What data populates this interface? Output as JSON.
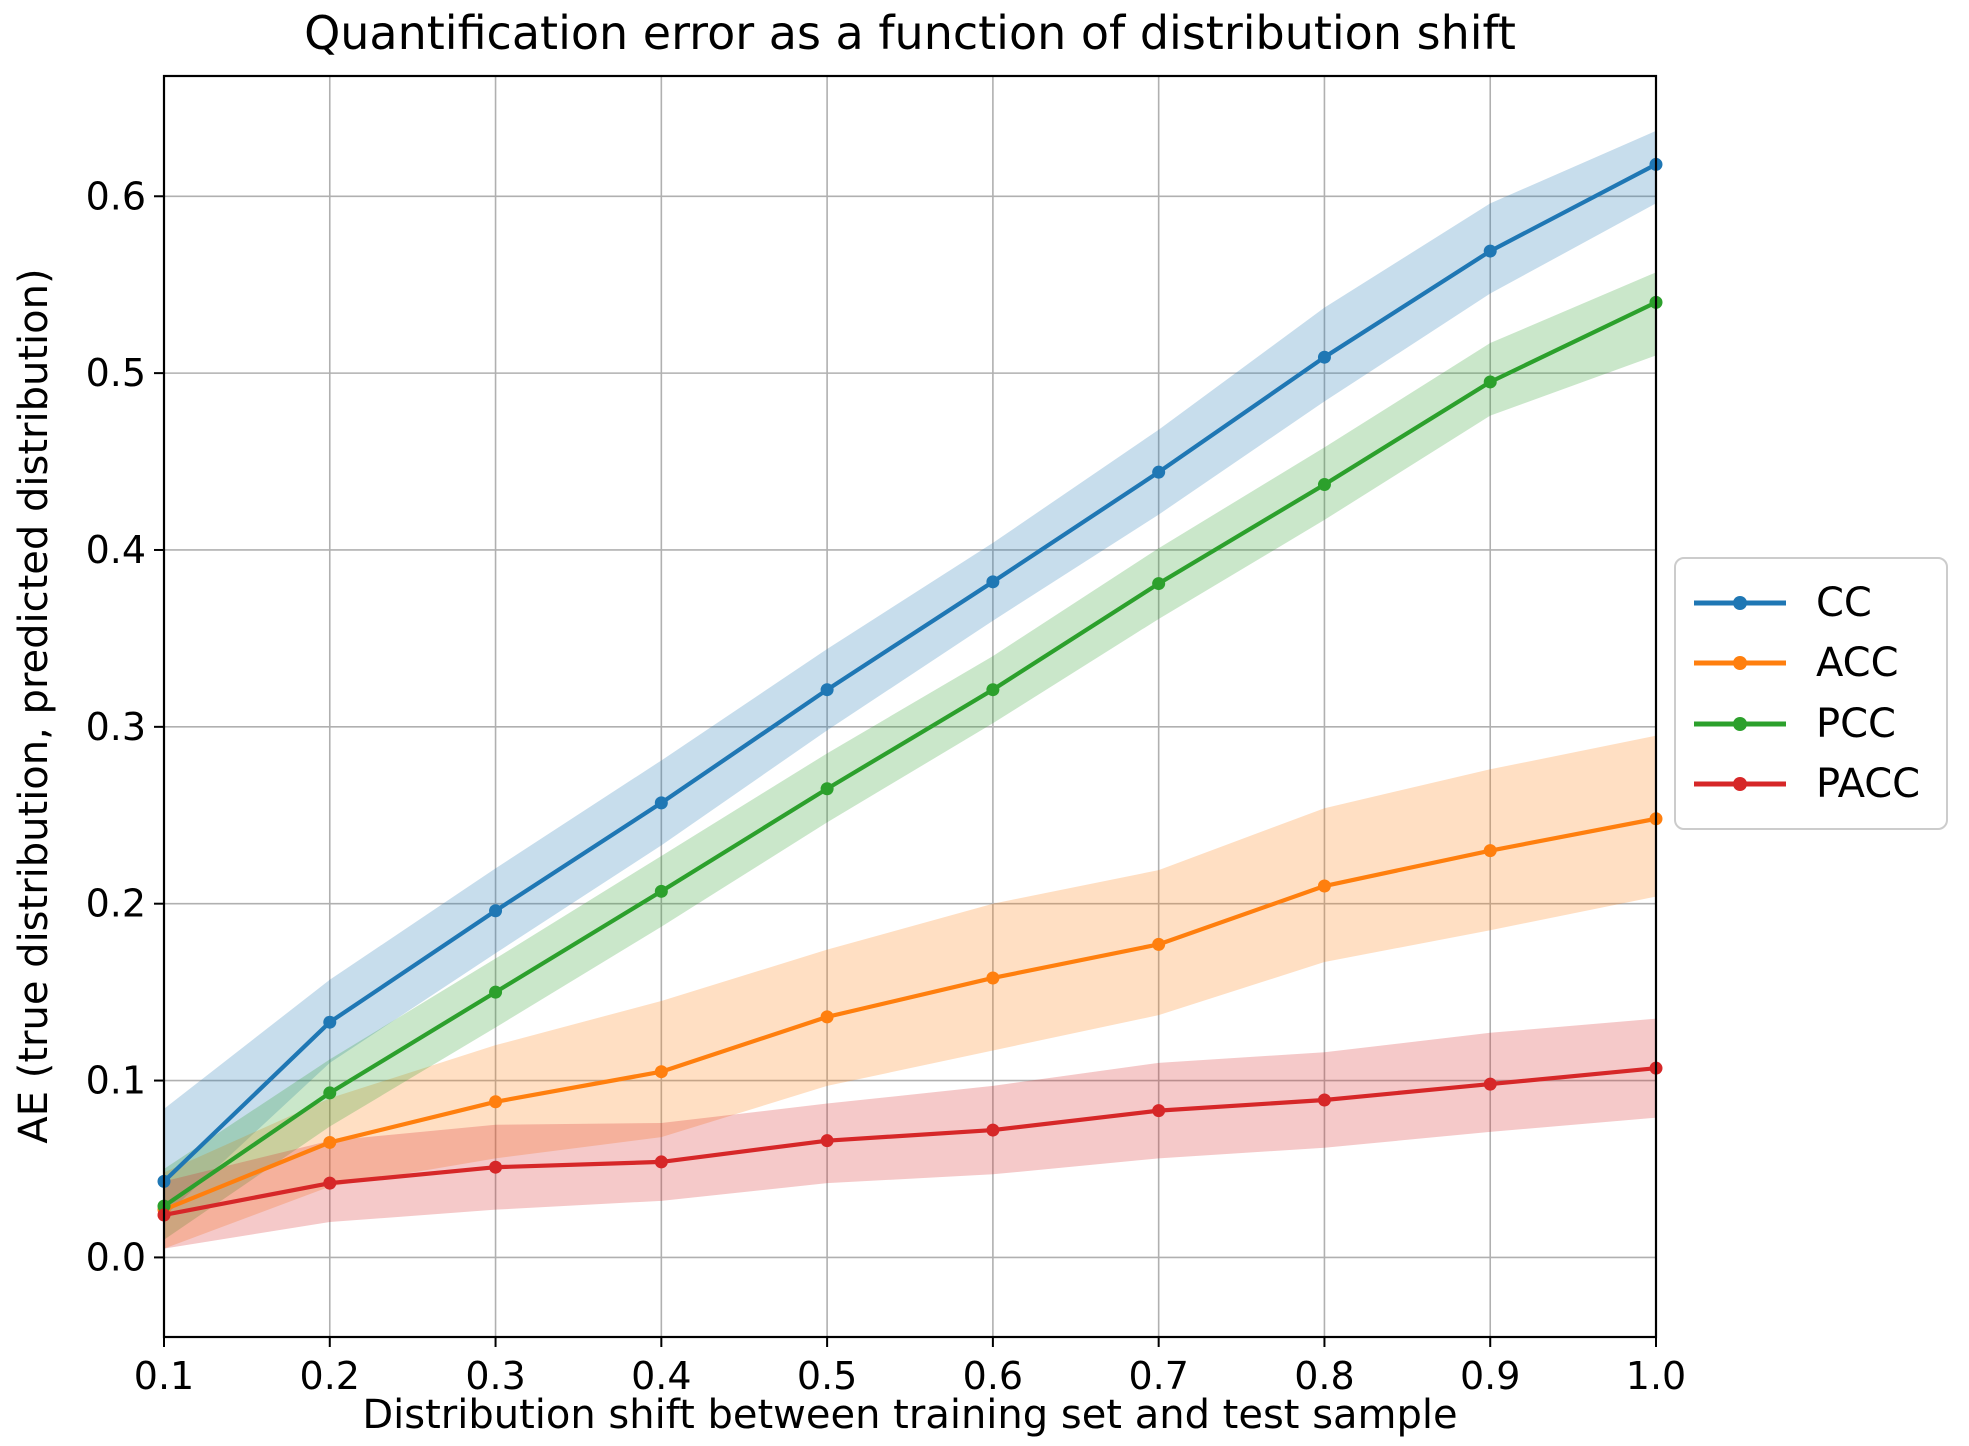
{
  "chart_data": {
    "type": "line",
    "title": "Quantification error as a function of distribution shift",
    "xlabel": "Distribution shift between training set and test sample",
    "ylabel": "AE (true distribution, predicted distribution)",
    "xlim": [
      0.1,
      1.0
    ],
    "ylim": [
      -0.045,
      0.668
    ],
    "grid": true,
    "grid_color": "#b0b0b0",
    "spine_color": "#000000",
    "band_opacity": 0.25,
    "legend_position": "outside-right",
    "xticks": {
      "values": [
        0.1,
        0.2,
        0.3,
        0.4,
        0.5,
        0.6,
        0.7,
        0.8,
        0.9,
        1.0
      ],
      "labels": [
        "0.1",
        "0.2",
        "0.3",
        "0.4",
        "0.5",
        "0.6",
        "0.7",
        "0.8",
        "0.9",
        "1.0"
      ]
    },
    "yticks": {
      "values": [
        0.0,
        0.1,
        0.2,
        0.3,
        0.4,
        0.5,
        0.6
      ],
      "labels": [
        "0.0",
        "0.1",
        "0.2",
        "0.3",
        "0.4",
        "0.5",
        "0.6"
      ]
    },
    "x": [
      0.1,
      0.2,
      0.3,
      0.4,
      0.5,
      0.6,
      0.7,
      0.8,
      0.9,
      1.0
    ],
    "series": [
      {
        "name": "CC",
        "color": "#1f77b4",
        "values": [
          0.043,
          0.133,
          0.196,
          0.257,
          0.321,
          0.382,
          0.444,
          0.509,
          0.569,
          0.618
        ],
        "band_lo": [
          0.023,
          0.11,
          0.172,
          0.233,
          0.298,
          0.36,
          0.42,
          0.484,
          0.545,
          0.596
        ],
        "band_hi": [
          0.084,
          0.157,
          0.22,
          0.281,
          0.344,
          0.404,
          0.468,
          0.537,
          0.596,
          0.637
        ]
      },
      {
        "name": "ACC",
        "color": "#ff7f0e",
        "values": [
          0.027,
          0.065,
          0.088,
          0.105,
          0.136,
          0.158,
          0.177,
          0.21,
          0.23,
          0.248
        ],
        "band_lo": [
          0.005,
          0.04,
          0.056,
          0.068,
          0.097,
          0.117,
          0.137,
          0.167,
          0.185,
          0.204
        ],
        "band_hi": [
          0.048,
          0.09,
          0.12,
          0.145,
          0.174,
          0.2,
          0.219,
          0.254,
          0.276,
          0.295
        ]
      },
      {
        "name": "PCC",
        "color": "#2ca02c",
        "values": [
          0.029,
          0.093,
          0.15,
          0.207,
          0.265,
          0.321,
          0.381,
          0.437,
          0.495,
          0.54
        ],
        "band_lo": [
          0.01,
          0.074,
          0.13,
          0.187,
          0.246,
          0.302,
          0.361,
          0.417,
          0.476,
          0.51
        ],
        "band_hi": [
          0.05,
          0.112,
          0.169,
          0.227,
          0.285,
          0.34,
          0.401,
          0.458,
          0.517,
          0.557
        ]
      },
      {
        "name": "PACC",
        "color": "#d62728",
        "values": [
          0.024,
          0.042,
          0.051,
          0.054,
          0.066,
          0.072,
          0.083,
          0.089,
          0.098,
          0.107
        ],
        "band_lo": [
          0.005,
          0.02,
          0.027,
          0.032,
          0.042,
          0.047,
          0.056,
          0.062,
          0.071,
          0.079
        ],
        "band_hi": [
          0.043,
          0.066,
          0.075,
          0.076,
          0.087,
          0.097,
          0.11,
          0.116,
          0.127,
          0.135
        ]
      }
    ]
  }
}
